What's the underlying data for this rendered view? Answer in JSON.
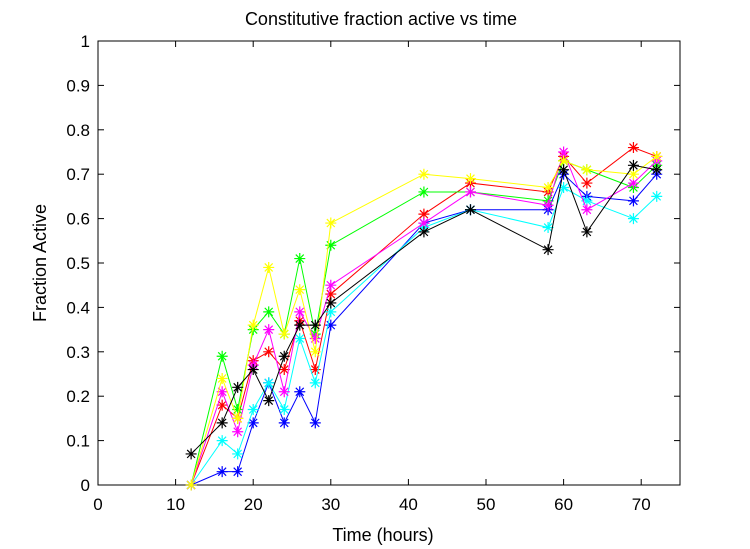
{
  "chart_data": {
    "type": "line",
    "title": "Constitutive fraction active vs time",
    "xlabel": "Time (hours)",
    "ylabel": "Fraction Active",
    "xlim": [
      0,
      75
    ],
    "ylim": [
      0,
      1
    ],
    "x_ticks": [
      "0",
      "10",
      "20",
      "30",
      "40",
      "50",
      "60",
      "70"
    ],
    "y_ticks": [
      "0",
      "0.1",
      "0.2",
      "0.3",
      "0.4",
      "0.5",
      "0.6",
      "0.7",
      "0.8",
      "0.9",
      "1"
    ],
    "x_tick_values": [
      0,
      10,
      20,
      30,
      40,
      50,
      60,
      70
    ],
    "y_tick_values": [
      0,
      0.1,
      0.2,
      0.3,
      0.4,
      0.5,
      0.6,
      0.7,
      0.8,
      0.9,
      1
    ],
    "grid": false,
    "legend": "none",
    "marker": "asterisk",
    "x": [
      12,
      16,
      18,
      20,
      22,
      24,
      26,
      28,
      30,
      42,
      48,
      58,
      60,
      63,
      69,
      72
    ],
    "series": [
      {
        "color": "#ff0000",
        "values": [
          0.0,
          0.18,
          0.15,
          0.28,
          0.3,
          0.26,
          0.37,
          0.26,
          0.43,
          0.61,
          0.68,
          0.66,
          0.74,
          0.68,
          0.76,
          0.74
        ]
      },
      {
        "color": "#00ff00",
        "values": [
          0.0,
          0.29,
          0.17,
          0.35,
          0.39,
          0.34,
          0.51,
          0.34,
          0.54,
          0.66,
          0.66,
          0.64,
          0.73,
          0.71,
          0.67,
          0.72
        ]
      },
      {
        "color": "#0000ff",
        "values": [
          0.0,
          0.03,
          0.03,
          0.14,
          0.23,
          0.14,
          0.21,
          0.14,
          0.36,
          0.59,
          0.62,
          0.62,
          0.7,
          0.65,
          0.64,
          0.7
        ]
      },
      {
        "color": "#00ffff",
        "values": [
          0.0,
          0.1,
          0.07,
          0.17,
          0.23,
          0.17,
          0.33,
          0.23,
          0.39,
          0.58,
          0.62,
          0.58,
          0.67,
          0.64,
          0.6,
          0.65
        ]
      },
      {
        "color": "#ff00ff",
        "values": [
          0.0,
          0.21,
          0.12,
          0.27,
          0.35,
          0.21,
          0.39,
          0.33,
          0.45,
          0.59,
          0.66,
          0.63,
          0.75,
          0.62,
          0.68,
          0.73
        ]
      },
      {
        "color": "#ffff00",
        "values": [
          0.0,
          0.24,
          0.15,
          0.36,
          0.49,
          0.34,
          0.44,
          0.3,
          0.59,
          0.7,
          0.69,
          0.67,
          0.73,
          0.71,
          0.7,
          0.74
        ]
      },
      {
        "color": "#000000",
        "values": [
          0.07,
          0.14,
          0.22,
          0.26,
          0.19,
          0.29,
          0.36,
          0.36,
          0.41,
          0.57,
          0.62,
          0.53,
          0.71,
          0.57,
          0.72,
          0.71
        ]
      }
    ]
  }
}
